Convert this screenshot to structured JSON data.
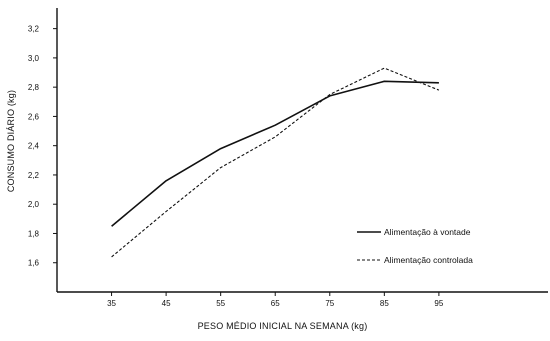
{
  "chart_data": {
    "type": "line",
    "title": "",
    "xlabel": "PESO MÉDIO INICIAL NA SEMANA (kg)",
    "ylabel": "CONSUMO DIÁRIO (kg)",
    "x": [
      35,
      45,
      55,
      65,
      75,
      85,
      95
    ],
    "x_tick_labels": [
      "35",
      "45",
      "55",
      "65",
      "75",
      "85",
      "95"
    ],
    "y_ticks": [
      1.6,
      1.8,
      2.0,
      2.2,
      2.4,
      2.6,
      2.8,
      3.0,
      3.2
    ],
    "y_tick_labels": [
      "1,6",
      "1,8",
      "2,0",
      "2,2",
      "2,4",
      "2,6",
      "2,8",
      "3,0",
      "3,2"
    ],
    "ylim": [
      1.4,
      3.3
    ],
    "xlim": [
      25,
      115
    ],
    "grid": false,
    "legend_position": "bottom-right",
    "series": [
      {
        "name": "Alimentação à vontade",
        "values": [
          1.85,
          2.16,
          2.38,
          2.54,
          2.74,
          2.84,
          2.83
        ],
        "style": "solid",
        "color": "#111111"
      },
      {
        "name": "Alimentação controlada",
        "values": [
          1.64,
          1.95,
          2.25,
          2.46,
          2.75,
          2.93,
          2.78
        ],
        "style": "dashed",
        "color": "#111111"
      }
    ]
  }
}
